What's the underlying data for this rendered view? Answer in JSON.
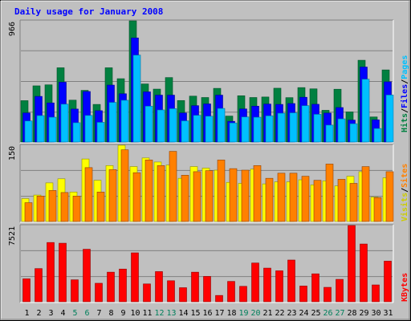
{
  "chart_data": {
    "type": "bar",
    "title": "Daily usage for January 2008",
    "categories": [
      "1",
      "2",
      "3",
      "4",
      "5",
      "6",
      "7",
      "8",
      "9",
      "10",
      "11",
      "12",
      "13",
      "14",
      "15",
      "16",
      "17",
      "18",
      "19",
      "20",
      "21",
      "22",
      "23",
      "24",
      "25",
      "26",
      "27",
      "28",
      "29",
      "30",
      "31"
    ],
    "weekend_days": [
      "5",
      "6",
      "12",
      "13",
      "19",
      "20",
      "26",
      "27"
    ],
    "panels": [
      {
        "id": "hits",
        "max_label": "966",
        "ylim": [
          0,
          966
        ],
        "series": [
          {
            "name": "Hits",
            "color": "#008040",
            "values": [
              330,
              448,
              456,
              592,
              334,
              412,
              300,
              592,
              505,
              966,
              463,
              422,
              514,
              331,
              366,
              355,
              428,
              207,
              369,
              355,
              359,
              429,
              354,
              434,
              424,
              253,
              421,
              240,
              652,
              200,
              575
            ]
          },
          {
            "name": "Files",
            "color": "#0000FF",
            "values": [
              232,
              364,
              312,
              477,
              263,
              403,
              250,
              454,
              385,
              830,
              400,
              374,
              374,
              232,
              290,
              304,
              374,
              165,
              264,
              286,
              303,
              300,
              307,
              357,
              301,
              231,
              275,
              175,
              598,
              177,
              480
            ]
          },
          {
            "name": "Pages",
            "color": "#00C0FF",
            "values": [
              168,
              211,
              198,
              302,
              154,
              212,
              157,
              316,
              333,
              693,
              286,
              256,
              266,
              169,
              213,
              206,
              268,
              152,
              200,
              198,
              209,
              230,
              233,
              290,
              221,
              135,
              185,
              146,
              501,
              108,
              375
            ]
          }
        ]
      },
      {
        "id": "visits",
        "max_label": "150",
        "ylim": [
          0,
          150
        ],
        "series": [
          {
            "name": "Visits",
            "color": "#FFFF00",
            "values": [
              45,
              52,
              76,
              84,
              58,
              123,
              81,
              110,
              150,
              108,
              125,
              117,
              111,
              85,
              108,
              105,
              101,
              77,
              75,
              103,
              74,
              78,
              78,
              82,
              72,
              80,
              70,
              89,
              98,
              48,
              86
            ]
          },
          {
            "name": "Sites",
            "color": "#FF8000",
            "values": [
              37,
              50,
              61,
              57,
              50,
              106,
              58,
              102,
              141,
              96,
              121,
              110,
              138,
              91,
              98,
              100,
              121,
              104,
              101,
              110,
              85,
              95,
              95,
              89,
              81,
              113,
              83,
              75,
              108,
              47,
              98
            ]
          }
        ]
      },
      {
        "id": "kbytes",
        "max_label": "7521",
        "ylim": [
          0,
          7521
        ],
        "series": [
          {
            "name": "KBytes",
            "color": "#FF0000",
            "values": [
              2262,
              3271,
              5844,
              5774,
              2165,
              5180,
              1823,
              2919,
              3225,
              4825,
              1758,
              2975,
              2072,
              1386,
              2918,
              2500,
              622,
              2008,
              1522,
              3821,
              3319,
              3052,
              4116,
              1551,
              2755,
              1422,
              2211,
              7521,
              5695,
              1659,
              4005
            ]
          }
        ]
      }
    ],
    "right_labels": [
      {
        "text": "Hits",
        "color": "#008040"
      },
      {
        "text": "/",
        "color": "#000000"
      },
      {
        "text": "Files",
        "color": "#0000FF"
      },
      {
        "text": "/",
        "color": "#000000"
      },
      {
        "text": "Pages",
        "color": "#00C0FF"
      }
    ],
    "right_labels_mid": [
      {
        "text": "Visits",
        "color": "#CCCC00"
      },
      {
        "text": "/",
        "color": "#000000"
      },
      {
        "text": "Sites",
        "color": "#FF8000"
      }
    ],
    "right_labels_bottom": [
      {
        "text": "KBytes",
        "color": "#FF0000"
      }
    ],
    "colors": {
      "background": "#C0C0C0",
      "title": "#0000FF",
      "weekday_label": "#000000",
      "weekend_label": "#00805C",
      "gridline": "#808080"
    }
  }
}
